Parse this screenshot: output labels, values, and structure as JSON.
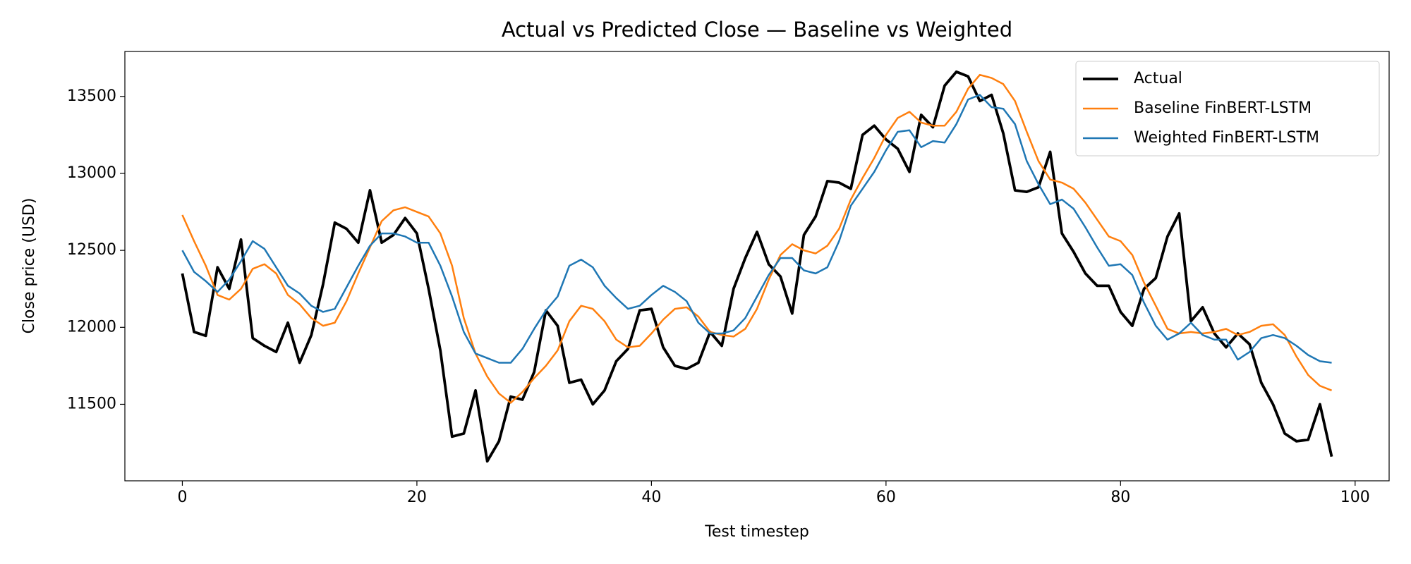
{
  "chart_data": {
    "type": "line",
    "title": "Actual vs Predicted Close — Baseline vs Weighted",
    "x_label": "Test timestep",
    "y_label": "Close price (USD)",
    "x": [
      0,
      1,
      2,
      3,
      4,
      5,
      6,
      7,
      8,
      9,
      10,
      11,
      12,
      13,
      14,
      15,
      16,
      17,
      18,
      19,
      20,
      21,
      22,
      23,
      24,
      25,
      26,
      27,
      28,
      29,
      30,
      31,
      32,
      33,
      34,
      35,
      36,
      37,
      38,
      39,
      40,
      41,
      42,
      43,
      44,
      45,
      46,
      47,
      48,
      49,
      50,
      51,
      52,
      53,
      54,
      55,
      56,
      57,
      58,
      59,
      60,
      61,
      62,
      63,
      64,
      65,
      66,
      67,
      68,
      69,
      70,
      71,
      72,
      73,
      74,
      75,
      76,
      77,
      78,
      79,
      80,
      81,
      82,
      83,
      84,
      85,
      86,
      87,
      88,
      89,
      90,
      91,
      92,
      93,
      94,
      95,
      96,
      97,
      98
    ],
    "series": [
      {
        "name": "Actual",
        "color": "#000000",
        "values": [
          12350,
          11970,
          11945,
          12390,
          12250,
          12570,
          11930,
          11880,
          11840,
          12030,
          11770,
          11950,
          12280,
          12680,
          12640,
          12550,
          12890,
          12550,
          12600,
          12710,
          12610,
          12250,
          11850,
          11290,
          11310,
          11590,
          11130,
          11260,
          11550,
          11530,
          11710,
          12110,
          12010,
          11640,
          11660,
          11500,
          11590,
          11780,
          11860,
          12110,
          12120,
          11870,
          11750,
          11730,
          11770,
          11970,
          11880,
          12250,
          12450,
          12620,
          12410,
          12330,
          12090,
          12600,
          12720,
          12950,
          12940,
          12900,
          13250,
          13310,
          13220,
          13160,
          13010,
          13380,
          13300,
          13570,
          13660,
          13630,
          13470,
          13510,
          13260,
          12890,
          12880,
          12910,
          13140,
          12610,
          12490,
          12350,
          12270,
          12270,
          12100,
          12010,
          12250,
          12320,
          12590,
          12740,
          12040,
          12130,
          11960,
          11870,
          11960,
          11890,
          11640,
          11500,
          11310,
          11260,
          11270,
          11500,
          11160
        ]
      },
      {
        "name": "Baseline FinBERT-LSTM",
        "color": "#ff7f0e",
        "values": [
          12730,
          12560,
          12400,
          12210,
          12180,
          12250,
          12380,
          12410,
          12350,
          12210,
          12150,
          12060,
          12010,
          12030,
          12170,
          12350,
          12520,
          12690,
          12760,
          12780,
          12750,
          12720,
          12610,
          12400,
          12060,
          11830,
          11680,
          11570,
          11510,
          11580,
          11670,
          11750,
          11850,
          12040,
          12140,
          12120,
          12040,
          11920,
          11870,
          11880,
          11960,
          12050,
          12120,
          12130,
          12070,
          11970,
          11950,
          11940,
          11990,
          12120,
          12310,
          12470,
          12540,
          12500,
          12480,
          12530,
          12640,
          12830,
          12970,
          13100,
          13250,
          13360,
          13400,
          13330,
          13310,
          13310,
          13400,
          13550,
          13640,
          13620,
          13580,
          13470,
          13270,
          13080,
          12960,
          12940,
          12900,
          12810,
          12700,
          12590,
          12560,
          12470,
          12290,
          12140,
          11990,
          11960,
          11970,
          11960,
          11970,
          11990,
          11950,
          11970,
          12010,
          12020,
          11950,
          11810,
          11690,
          11620,
          11590
        ]
      },
      {
        "name": "Weighted FinBERT-LSTM",
        "color": "#1f77b4",
        "values": [
          12500,
          12360,
          12300,
          12230,
          12310,
          12430,
          12560,
          12510,
          12390,
          12270,
          12220,
          12140,
          12100,
          12120,
          12260,
          12400,
          12530,
          12610,
          12610,
          12590,
          12550,
          12550,
          12400,
          12200,
          11970,
          11830,
          11800,
          11770,
          11770,
          11860,
          11990,
          12110,
          12200,
          12400,
          12440,
          12390,
          12270,
          12190,
          12120,
          12140,
          12210,
          12270,
          12230,
          12170,
          12030,
          11960,
          11960,
          11980,
          12060,
          12200,
          12340,
          12450,
          12450,
          12370,
          12350,
          12390,
          12560,
          12790,
          12900,
          13010,
          13150,
          13270,
          13280,
          13170,
          13210,
          13200,
          13320,
          13480,
          13510,
          13430,
          13420,
          13320,
          13080,
          12930,
          12800,
          12830,
          12770,
          12650,
          12520,
          12400,
          12410,
          12340,
          12160,
          12010,
          11920,
          11960,
          12030,
          11950,
          11920,
          11920,
          11790,
          11840,
          11930,
          11950,
          11930,
          11880,
          11820,
          11780,
          11770
        ]
      }
    ],
    "xlim": [
      -4.9,
      102.9
    ],
    "xticks": [
      0,
      20,
      40,
      60,
      80,
      100
    ],
    "ylim": [
      11003,
      13792
    ],
    "yticks": [
      11500,
      12000,
      12500,
      13000,
      13500
    ],
    "legend": "upper right"
  }
}
